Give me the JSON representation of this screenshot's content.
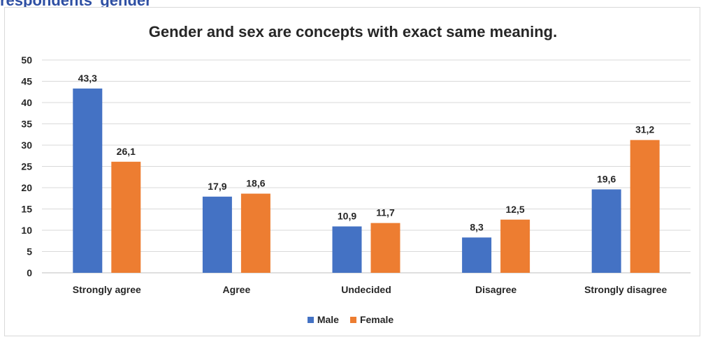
{
  "caption": "respondents' gender",
  "chart_data": {
    "type": "bar",
    "title": "Gender and sex are concepts with exact same meaning.",
    "categories": [
      "Strongly agree",
      "Agree",
      "Undecided",
      "Disagree",
      "Strongly disagree"
    ],
    "series": [
      {
        "name": "Male",
        "color": "#4472c4",
        "values": [
          43.3,
          17.9,
          10.9,
          8.3,
          19.6
        ],
        "labels": [
          "43,3",
          "17,9",
          "10,9",
          "8,3",
          "19,6"
        ]
      },
      {
        "name": "Female",
        "color": "#ed7d31",
        "values": [
          26.1,
          18.6,
          11.7,
          12.5,
          31.2
        ],
        "labels": [
          "26,1",
          "18,6",
          "11,7",
          "12,5",
          "31,2"
        ]
      }
    ],
    "ylim": [
      0,
      50
    ],
    "yticks": [
      "0",
      "5",
      "10",
      "15",
      "20",
      "25",
      "30",
      "35",
      "40",
      "45",
      "50"
    ],
    "grid": true,
    "legend_position": "bottom",
    "xlabel": "",
    "ylabel": ""
  }
}
